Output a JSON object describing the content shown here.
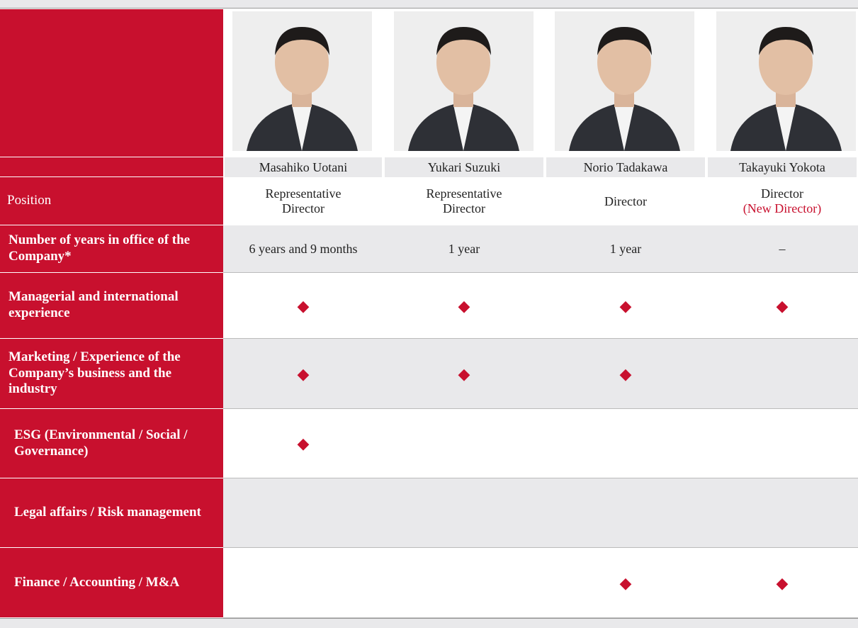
{
  "table": {
    "directors": [
      {
        "name": "Masahiko Uotani",
        "position": "Representative Director"
      },
      {
        "name": "Yukari Suzuki",
        "position": "Representative Director"
      },
      {
        "name": "Norio Tadakawa",
        "position": "Director"
      },
      {
        "name": "Takayuki Yokota",
        "position": "Director",
        "note": "(New Director)"
      }
    ],
    "position_label": "Position",
    "rows": [
      {
        "label": "Number of years in office of the Company*",
        "cells": [
          "6 years and 9 months",
          "1 year",
          "1 year",
          "–"
        ]
      },
      {
        "label": "Managerial and international experience",
        "cells": [
          "◆",
          "◆",
          "◆",
          "◆"
        ]
      },
      {
        "label": "Marketing / Experience of the Company’s business and the industry",
        "cells": [
          "◆",
          "◆",
          "◆",
          null
        ]
      },
      {
        "label": "ESG (Environmental / Social / Governance)",
        "cells": [
          "◆",
          null,
          null,
          null
        ]
      },
      {
        "label": "Legal affairs / Risk management",
        "cells": [
          null,
          null,
          null,
          null
        ]
      },
      {
        "label": "Finance / Accounting / M&A",
        "cells": [
          null,
          null,
          "◆",
          "◆"
        ]
      }
    ]
  }
}
